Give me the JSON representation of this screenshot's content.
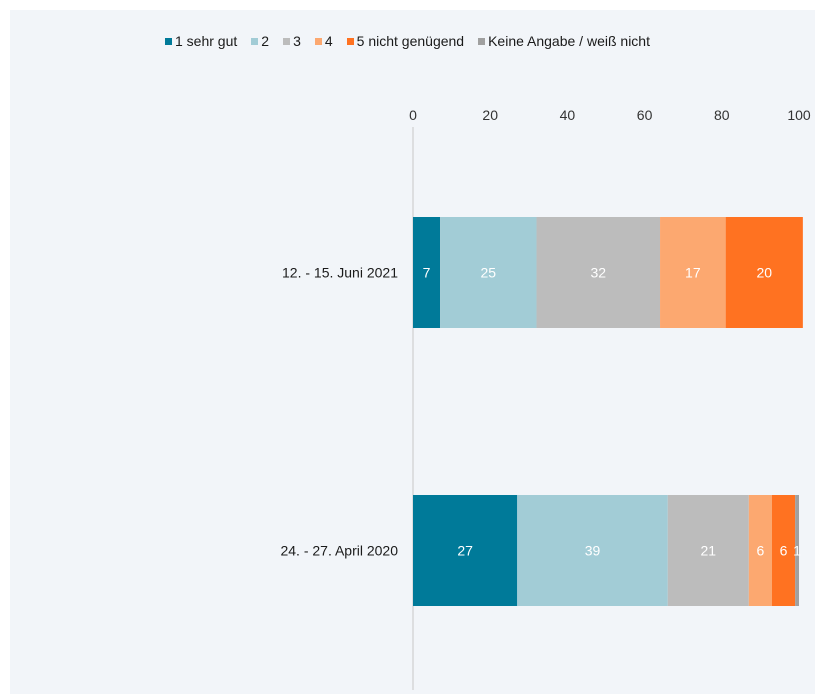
{
  "chart_data": {
    "type": "bar",
    "orientation": "horizontal",
    "stacked": true,
    "categories": [
      "12. - 15. Juni 2021",
      "24. - 27. April 2020"
    ],
    "series": [
      {
        "name": "1 sehr gut",
        "color": "#007a99",
        "values": [
          7,
          27
        ],
        "labels": [
          "7",
          "27"
        ]
      },
      {
        "name": "2",
        "color": "#a2ccd6",
        "values": [
          25,
          39
        ],
        "labels": [
          "25",
          "39"
        ]
      },
      {
        "name": "3",
        "color": "#bcbcbc",
        "values": [
          32,
          21
        ],
        "labels": [
          "32",
          "21"
        ]
      },
      {
        "name": "4",
        "color": "#fca870",
        "values": [
          17,
          6
        ],
        "labels": [
          "17",
          "6"
        ]
      },
      {
        "name": "5  nicht genügend",
        "color": "#ff7221",
        "values": [
          20,
          6
        ],
        "labels": [
          "20",
          "6"
        ]
      },
      {
        "name": "Keine Angabe / weiß nicht",
        "color": "#a0a0a0",
        "values": [
          0,
          1
        ],
        "labels": [
          "",
          "1"
        ]
      }
    ],
    "xlim": [
      0,
      100
    ],
    "xticks": [
      "0",
      "20",
      "40",
      "60",
      "80",
      "100"
    ],
    "axis_position": "top",
    "grid": false,
    "legend": "top",
    "title": "",
    "xlabel": "",
    "ylabel": ""
  }
}
